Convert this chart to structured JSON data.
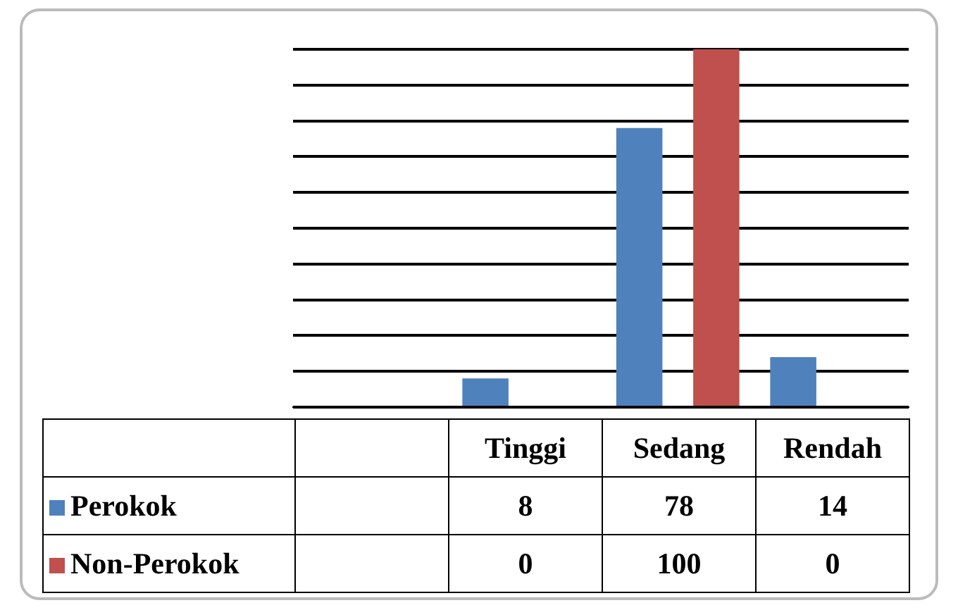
{
  "chart_data": {
    "type": "bar",
    "categories": [
      null,
      "Tinggi",
      "Sedang",
      "Rendah"
    ],
    "series": [
      {
        "name": "Perokok",
        "color": "#4f81bd",
        "values": [
          null,
          8,
          78,
          14
        ]
      },
      {
        "name": "Non-Perokok",
        "color": "#c0504d",
        "values": [
          null,
          0,
          100,
          0
        ]
      }
    ],
    "ylim": [
      0,
      100
    ],
    "yticks": [
      {
        "value": 0,
        "label": null
      },
      {
        "value": 10,
        "label": null
      },
      {
        "value": 20,
        "label": null
      },
      {
        "value": 30,
        "label": null
      },
      {
        "value": 40,
        "label": null
      },
      {
        "value": 50,
        "label": null
      },
      {
        "value": 60,
        "label": null
      },
      {
        "value": 70,
        "label": null
      },
      {
        "value": 80,
        "label": null
      },
      {
        "value": 90,
        "label": null
      },
      {
        "value": 100,
        "label": null
      }
    ],
    "grid": "y",
    "legend": "bottom",
    "data_labels": true
  }
}
